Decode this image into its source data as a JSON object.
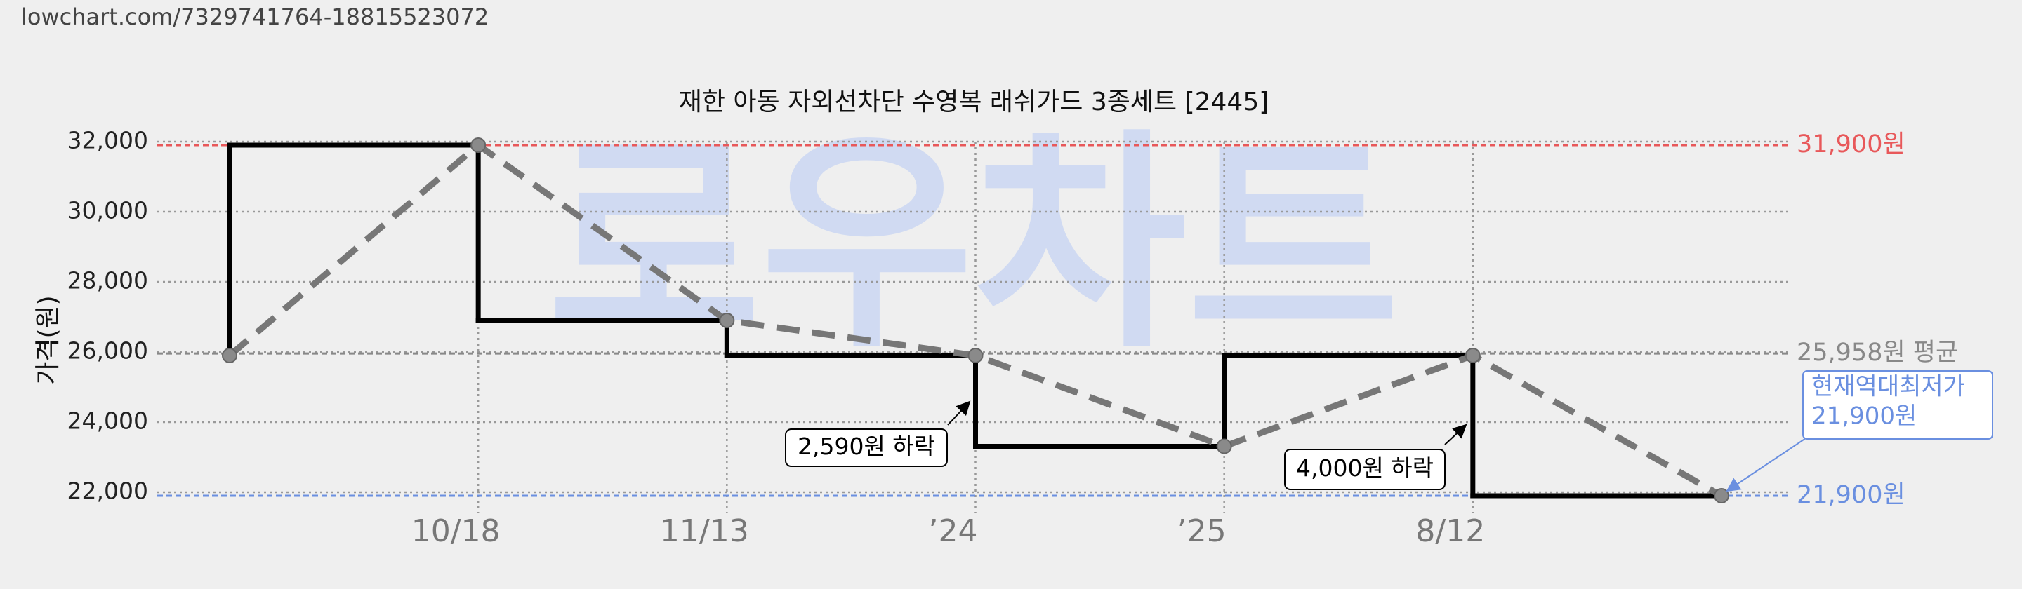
{
  "header": {
    "url": "lowchart.com/7329741764-18815523072"
  },
  "chart_data": {
    "type": "step",
    "title": "재한 아동 자외선차단 수영복 래쉬가드 3종세트 [2445]",
    "y_label": "가격(원)",
    "watermark": "로우차트",
    "categories": [
      null,
      "10/18",
      "11/13",
      "’24",
      "’25",
      "8/12",
      null
    ],
    "values": [
      25900,
      31900,
      26900,
      25900,
      23310,
      25900,
      21900
    ],
    "step_color": "#000000",
    "line_color": "#777777",
    "ylim": [
      22000,
      32000
    ],
    "yticks": [
      {
        "value": 22000,
        "label": "22,000"
      },
      {
        "value": 24000,
        "label": "24,000"
      },
      {
        "value": 26000,
        "label": "26,000"
      },
      {
        "value": 28000,
        "label": "28,000"
      },
      {
        "value": 30000,
        "label": "30,000"
      },
      {
        "value": 32000,
        "label": "32,000"
      }
    ],
    "grid": true,
    "reference_lines": [
      {
        "value": 31900,
        "label": "31,900원",
        "color": "#e8585a"
      },
      {
        "value": 25958,
        "label": "25,958원 평균",
        "color": "#888888"
      },
      {
        "value": 21900,
        "label": "21,900원",
        "color": "#6a8fe0"
      }
    ],
    "annotations": [
      {
        "text": "2,590원 하락"
      },
      {
        "text": "4,000원 하락"
      }
    ],
    "callout": {
      "lines": [
        "현재역대최저가",
        "21,900원"
      ],
      "color": "#6a8fe0"
    }
  }
}
